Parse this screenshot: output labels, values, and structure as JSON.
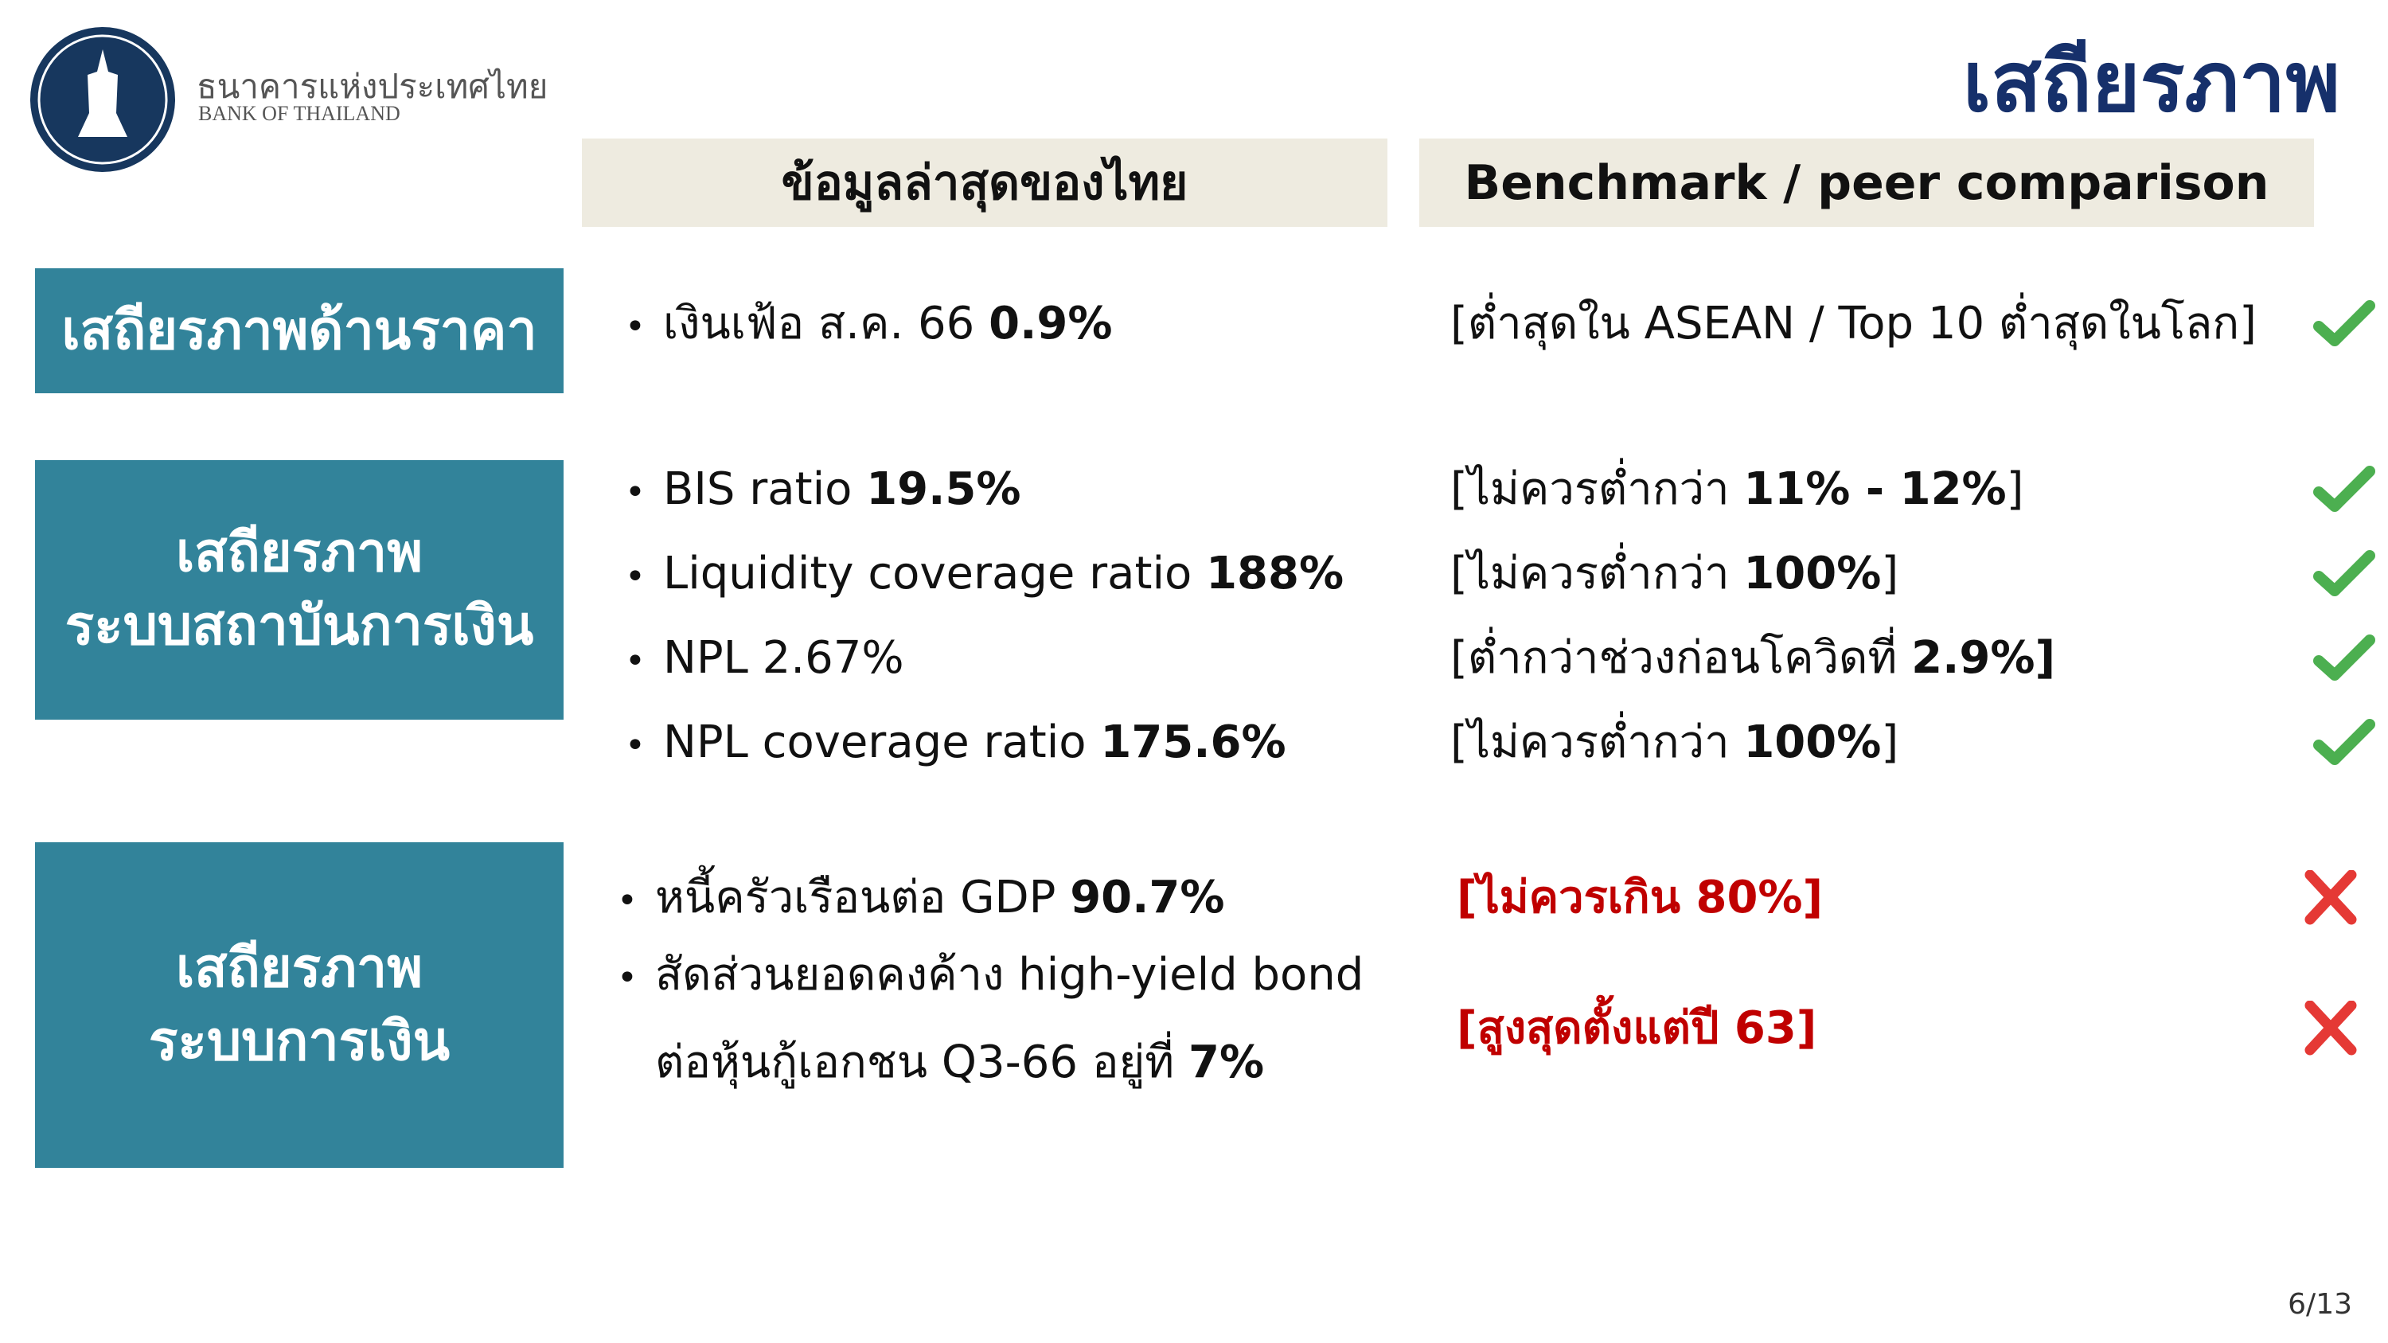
{
  "logo": {
    "name_th": "ธนาคารแห่งประเทศไทย",
    "name_en": "BANK OF THAILAND"
  },
  "title": "เสถียรภาพ",
  "columns": [
    "ข้อมูลล่าสุดของไทย",
    "Benchmark / peer comparison"
  ],
  "sections": [
    {
      "label": [
        "เสถียรภาพด้านราคา"
      ],
      "rows": [
        {
          "latest": {
            "text": "เงินเฟ้อ ส.ค. 66",
            "bold": "0.9%"
          },
          "benchmark": {
            "text": "[ต่ำสุดใน ASEAN / Top 10 ต่ำสุดในโลก]"
          }
        }
      ]
    },
    {
      "label": [
        "เสถียรภาพ",
        "ระบบสถาบันการเงิน"
      ],
      "rows": [
        {
          "latest": {
            "text": "BIS ratio",
            "bold": "19.5%"
          },
          "benchmark": {
            "text": "[ไม่ควรต่ำกว่า",
            "bold": "11% - 12%",
            "end": "]"
          }
        },
        {
          "latest": {
            "text": "Liquidity coverage ratio",
            "bold": "188%"
          },
          "benchmark": {
            "text": "[ไม่ควรต่ำกว่า",
            "bold": "100%",
            "end": "]"
          }
        },
        {
          "latest": {
            "text": "NPL 2.67%"
          },
          "benchmark": {
            "text": "[ต่ำกว่าช่วงก่อนโควิดที่",
            "bold": "2.9%]"
          }
        },
        {
          "latest": {
            "text": "NPL coverage ratio",
            "bold": "175.6%"
          },
          "benchmark": {
            "text": "[ไม่ควรต่ำกว่า",
            "bold": "100%",
            "end": "]"
          }
        }
      ]
    },
    {
      "label": [
        "เสถียรภาพ",
        "ระบบการเงิน"
      ],
      "rows": [
        {
          "latest": {
            "text": "หนี้ครัวเรือนต่อ GDP",
            "bold": "90.7%"
          },
          "benchmark": {
            "bold": "[ไม่ควรเกิน 80%]"
          }
        },
        {
          "latest": {
            "text": "สัดส่วนยอดคงค้าง high-yield bond",
            "text2": "ต่อหุ้นกู้เอกชน Q3-66 อยู่ที่",
            "bold": "7%"
          },
          "benchmark": {
            "text": "[สูงสุดตั้งแต่ปี 63]"
          }
        }
      ]
    }
  ],
  "page": "6/13"
}
